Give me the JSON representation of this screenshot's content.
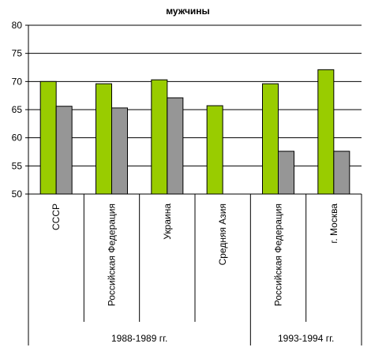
{
  "chart_data": {
    "type": "bar",
    "title": "мужчины",
    "categories": [
      "СССР",
      "Российская Федерация",
      "Украина",
      "Средняя Азия",
      "Российская Федерация",
      "г. Москва"
    ],
    "groups": [
      {
        "label": "1988-1989  гг.",
        "start": 0,
        "end": 3
      },
      {
        "label": "1993-1994  гг.",
        "start": 4,
        "end": 5
      }
    ],
    "series": [
      {
        "values": [
          70.0,
          69.6,
          70.3,
          65.7,
          69.6,
          72.1
        ],
        "color": "#99cc00"
      },
      {
        "values": [
          65.6,
          65.3,
          67.1,
          null,
          57.6,
          57.6
        ],
        "color": "#969696"
      }
    ],
    "ylim": [
      50,
      80
    ],
    "yticks": [
      50,
      55,
      60,
      65,
      70,
      75,
      80
    ],
    "grid": true
  }
}
